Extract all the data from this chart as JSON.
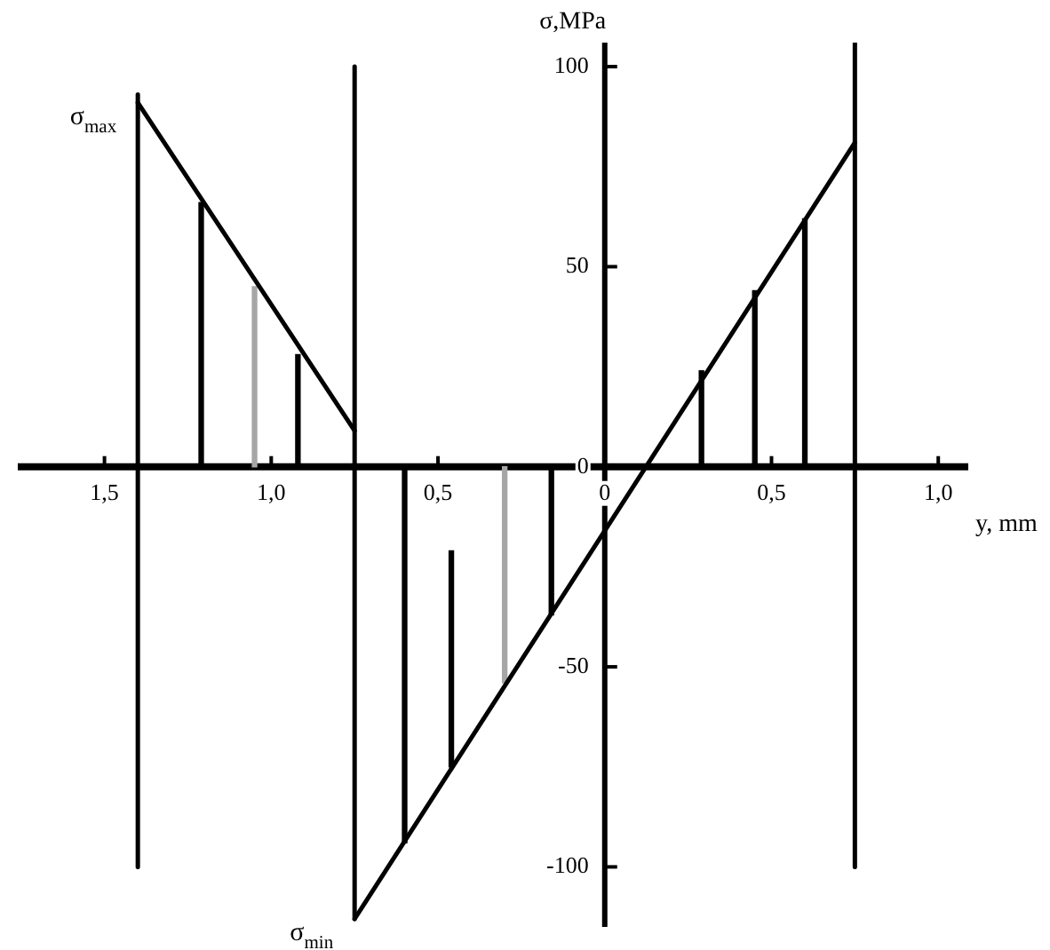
{
  "chart_data": {
    "type": "line",
    "xlabel": "y, mm",
    "ylabel": "σ,MPa",
    "xlim": [
      -1.76,
      1.09
    ],
    "xticks": [
      {
        "value": -1.5,
        "label": "1,5"
      },
      {
        "value": -1,
        "label": "1,0"
      },
      {
        "value": -0.5,
        "label": "0,5"
      },
      0,
      {
        "value": 0.5,
        "label": "0,5"
      },
      {
        "value": 1,
        "label": "1,0"
      }
    ],
    "ylim": [
      -115,
      106
    ],
    "yticks": [
      -100,
      -50,
      0,
      50,
      100
    ],
    "marker": "none",
    "series": [
      {
        "color": "#000000",
        "x": [
          -1.4,
          -0.75
        ],
        "values": [
          91,
          9
        ]
      },
      {
        "color": "#000000",
        "x": [
          -0.75,
          0.75
        ],
        "values": [
          -113,
          81
        ]
      },
      {
        "color": "#000000",
        "x": [
          -1.4,
          -1.4
        ],
        "values": [
          93,
          -100
        ]
      },
      {
        "color": "#000000",
        "x": [
          -0.75,
          -0.75
        ],
        "values": [
          100,
          -113
        ]
      },
      {
        "color": "#000000",
        "x": [
          0.75,
          0.75
        ],
        "values": [
          106,
          -100
        ]
      },
      {
        "type": "bar",
        "x": [
          -1.21,
          -1.05,
          -0.92,
          -0.6,
          -0.46,
          -0.3,
          -0.16,
          0.29,
          0.45,
          0.6
        ],
        "values": [
          66,
          45,
          28,
          -94,
          -54,
          -54,
          -37,
          24,
          44,
          62
        ],
        "base": [
          0,
          0,
          0,
          0,
          -21,
          0,
          0,
          0,
          0,
          0
        ],
        "colors": [
          "#000000",
          "#a6a6a6",
          "#000000",
          "#000000",
          "#000000",
          "#a6a6a6",
          "#000000",
          "#000000",
          "#000000",
          "#000000"
        ]
      }
    ],
    "annotations": [
      {
        "text": "σ$_{max}$",
        "x": -1.4,
        "y": 91
      },
      {
        "text": "σ$_{min}$",
        "x": -0.75,
        "y": -113
      }
    ]
  }
}
